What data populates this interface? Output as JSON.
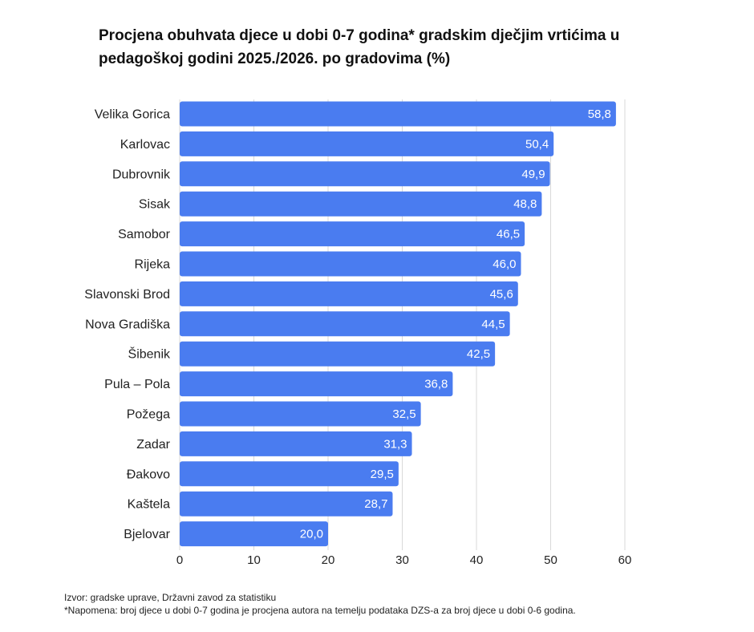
{
  "chart_data": {
    "type": "bar",
    "orientation": "horizontal",
    "title": "Procjena obuhvata djece u dobi 0-7 godina* gradskim dječjim vrtićima u pedagoškoj godini 2025./2026. po gradovima  (%)",
    "xlabel": "",
    "ylabel": "",
    "categories": [
      "Velika Gorica",
      "Karlovac",
      "Dubrovnik",
      "Sisak",
      "Samobor",
      "Rijeka",
      "Slavonski Brod",
      "Nova Gradiška",
      "Šibenik",
      "Pula – Pola",
      "Požega",
      "Zadar",
      "Đakovo",
      "Kaštela",
      "Bjelovar"
    ],
    "values": [
      58.8,
      50.4,
      49.9,
      48.8,
      46.5,
      46.0,
      45.6,
      44.5,
      42.5,
      36.8,
      32.5,
      31.3,
      29.5,
      28.7,
      20.0
    ],
    "value_labels": [
      "58,8",
      "50,4",
      "49,9",
      "48,8",
      "46,5",
      "46,0",
      "45,6",
      "44,5",
      "42,5",
      "36,8",
      "32,5",
      "31,3",
      "29,5",
      "28,7",
      "20,0"
    ],
    "xlim": [
      0,
      60
    ],
    "xticks": [
      0,
      10,
      20,
      30,
      40,
      50,
      60
    ],
    "grid": true,
    "bar_color": "#4a7cf0"
  },
  "footer": {
    "source": "Izvor: gradske uprave, Državni zavod za statistiku",
    "note": "*Napomena: broj djece u dobi 0-7 godina je procjena autora na temelju podataka DZS-a za broj djece u dobi 0-6 godina."
  }
}
